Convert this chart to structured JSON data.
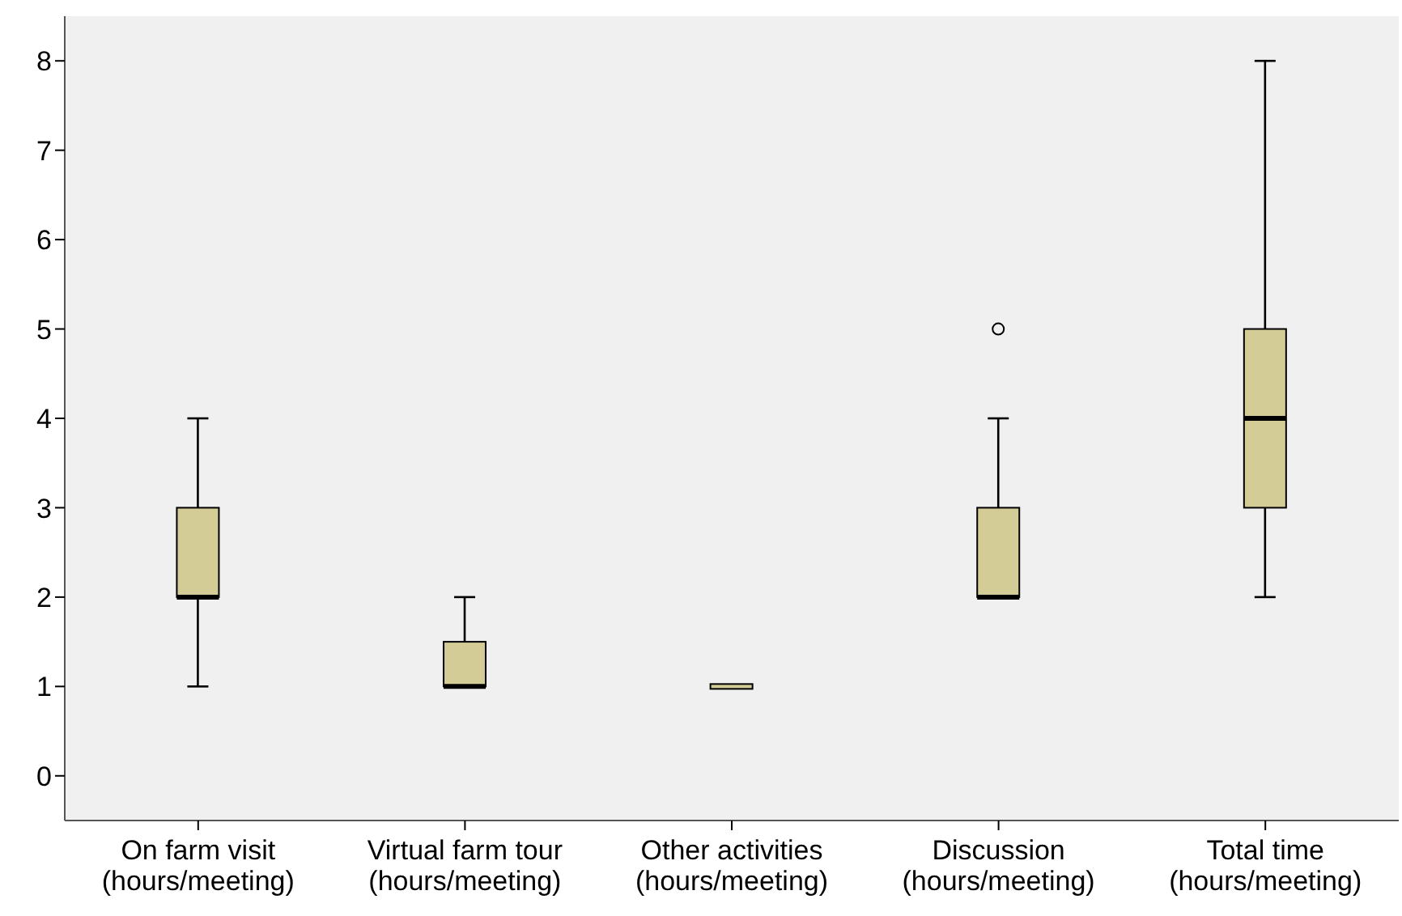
{
  "chart_data": {
    "type": "box",
    "categories": [
      "On farm visit\n(hours/meeting)",
      "Virtual farm tour\n(hours/meeting)",
      "Other activities\n(hours/meeting)",
      "Discussion\n(hours/meeting)",
      "Total time\n(hours/meeting)"
    ],
    "boxes": [
      {
        "low": 1,
        "q1": 2,
        "median": 2,
        "q3": 3,
        "high": 4
      },
      {
        "low": 1,
        "q1": 1,
        "median": 1,
        "q3": 1.5,
        "high": 2
      },
      {
        "low": 1,
        "q1": 1,
        "median": 1,
        "q3": 1,
        "high": 1
      },
      {
        "low": 2,
        "q1": 2,
        "median": 2,
        "q3": 3,
        "high": 4,
        "outliers": [
          5
        ]
      },
      {
        "low": 2,
        "q1": 3,
        "median": 4,
        "q3": 5,
        "high": 8
      }
    ],
    "color": "#d4cc96",
    "ylim": [
      -0.5,
      8.5
    ],
    "yticks": [
      0,
      1,
      2,
      3,
      4,
      5,
      6,
      7,
      8
    ]
  }
}
